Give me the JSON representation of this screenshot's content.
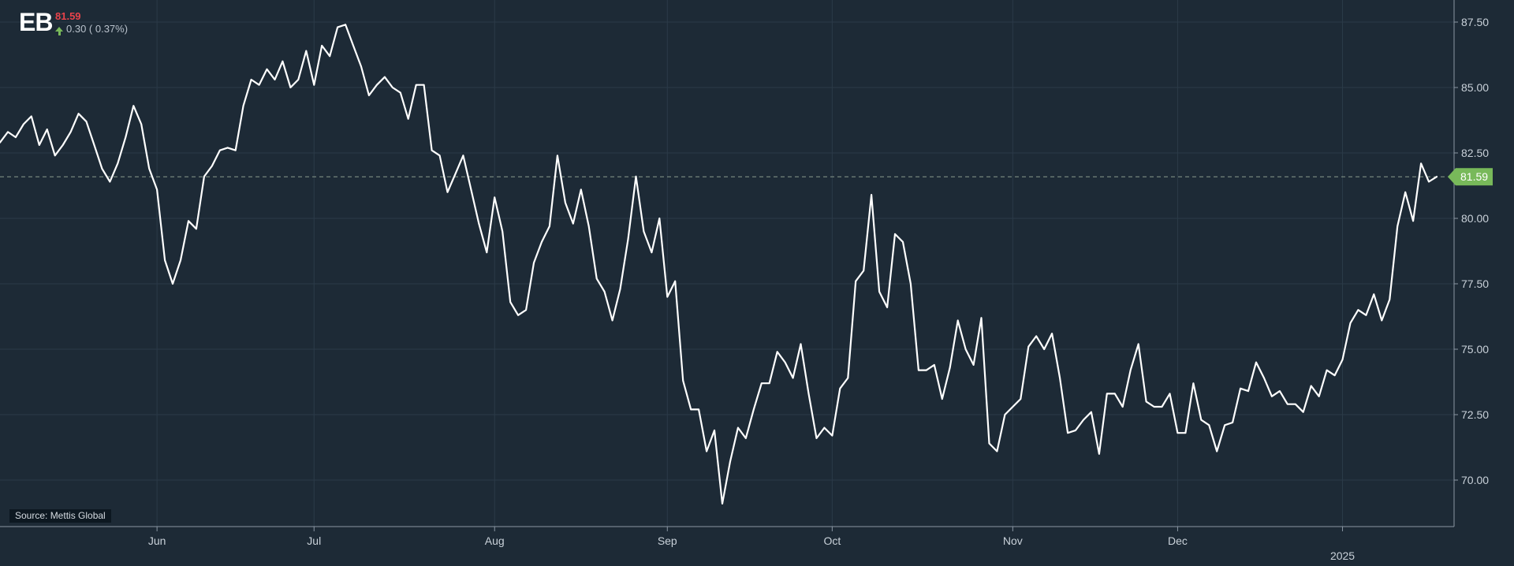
{
  "ticker": {
    "symbol": "EB",
    "price": "81.59",
    "change": "0.30 ( 0.37%)",
    "change_color": "#78b95a",
    "price_color": "#e8434b"
  },
  "source_label": "Source: Mettis Global",
  "colors": {
    "background": "#1d2a36",
    "line": "#ffffff",
    "grid": "#2b3a48",
    "current_marker": "#78b95a"
  },
  "chart_data": {
    "type": "line",
    "title": "",
    "xlabel": "",
    "ylabel": "",
    "y_axis_position": "right",
    "grid": true,
    "ylim": [
      68.2,
      88.4
    ],
    "y_ticks": [
      70.0,
      72.5,
      75.0,
      77.5,
      80.0,
      82.5,
      85.0,
      87.5
    ],
    "y_tick_labels": [
      "70.00",
      "72.50",
      "75.00",
      "77.50",
      "80.00",
      "82.50",
      "85.00",
      "87.50"
    ],
    "x_ticks": [
      {
        "label": "Jun",
        "index": 20
      },
      {
        "label": "Jul",
        "index": 40
      },
      {
        "label": "Aug",
        "index": 63
      },
      {
        "label": "Sep",
        "index": 85
      },
      {
        "label": "Oct",
        "index": 106
      },
      {
        "label": "Nov",
        "index": 129
      },
      {
        "label": "Dec",
        "index": 150
      },
      {
        "label": "2025",
        "index": 171
      }
    ],
    "current_value": 81.59,
    "current_value_label": "81.59",
    "series": [
      {
        "values": [
          82.9,
          83.3,
          83.1,
          83.6,
          83.9,
          82.8,
          83.4,
          82.4,
          82.8,
          83.3,
          84.0,
          83.7,
          82.8,
          81.9,
          81.4,
          82.1,
          83.1,
          84.3,
          83.6,
          81.9,
          81.1,
          78.4,
          77.5,
          78.4,
          79.9,
          79.6,
          81.6,
          82.0,
          82.6,
          82.7,
          82.6,
          84.3,
          85.3,
          85.1,
          85.7,
          85.3,
          86.0,
          85.0,
          85.3,
          86.4,
          85.1,
          86.6,
          86.2,
          87.3,
          87.4,
          86.6,
          85.8,
          84.7,
          85.1,
          85.4,
          85.0,
          84.8,
          83.8,
          85.1,
          85.1,
          82.6,
          82.4,
          81.0,
          81.7,
          82.4,
          81.1,
          79.8,
          78.7,
          80.8,
          79.5,
          76.8,
          76.3,
          76.5,
          78.3,
          79.1,
          79.7,
          82.4,
          80.6,
          79.8,
          81.1,
          79.7,
          77.7,
          77.2,
          76.1,
          77.3,
          79.2,
          81.6,
          79.5,
          78.7,
          80.0,
          77.0,
          77.6,
          73.8,
          72.7,
          72.7,
          71.1,
          71.9,
          69.1,
          70.7,
          72.0,
          71.6,
          72.7,
          73.7,
          73.7,
          74.9,
          74.5,
          73.9,
          75.2,
          73.3,
          71.6,
          72.0,
          71.7,
          73.5,
          73.9,
          77.6,
          78.0,
          80.9,
          77.2,
          76.6,
          79.4,
          79.1,
          77.5,
          74.2,
          74.2,
          74.4,
          73.1,
          74.3,
          76.1,
          75.0,
          74.4,
          76.2,
          71.4,
          71.1,
          72.5,
          72.8,
          73.1,
          75.1,
          75.5,
          75.0,
          75.6,
          73.9,
          71.8,
          71.9,
          72.3,
          72.6,
          71.0,
          73.3,
          73.3,
          72.8,
          74.2,
          75.2,
          73.0,
          72.8,
          72.8,
          73.3,
          71.8,
          71.8,
          73.7,
          72.3,
          72.1,
          71.1,
          72.1,
          72.2,
          73.5,
          73.4,
          74.5,
          73.9,
          73.2,
          73.4,
          72.9,
          72.9,
          72.6,
          73.6,
          73.2,
          74.2,
          74.0,
          74.6,
          76.0,
          76.5,
          76.3,
          77.1,
          76.1,
          76.9,
          79.7,
          81.0,
          79.9,
          82.1,
          81.4,
          81.59
        ]
      }
    ]
  }
}
